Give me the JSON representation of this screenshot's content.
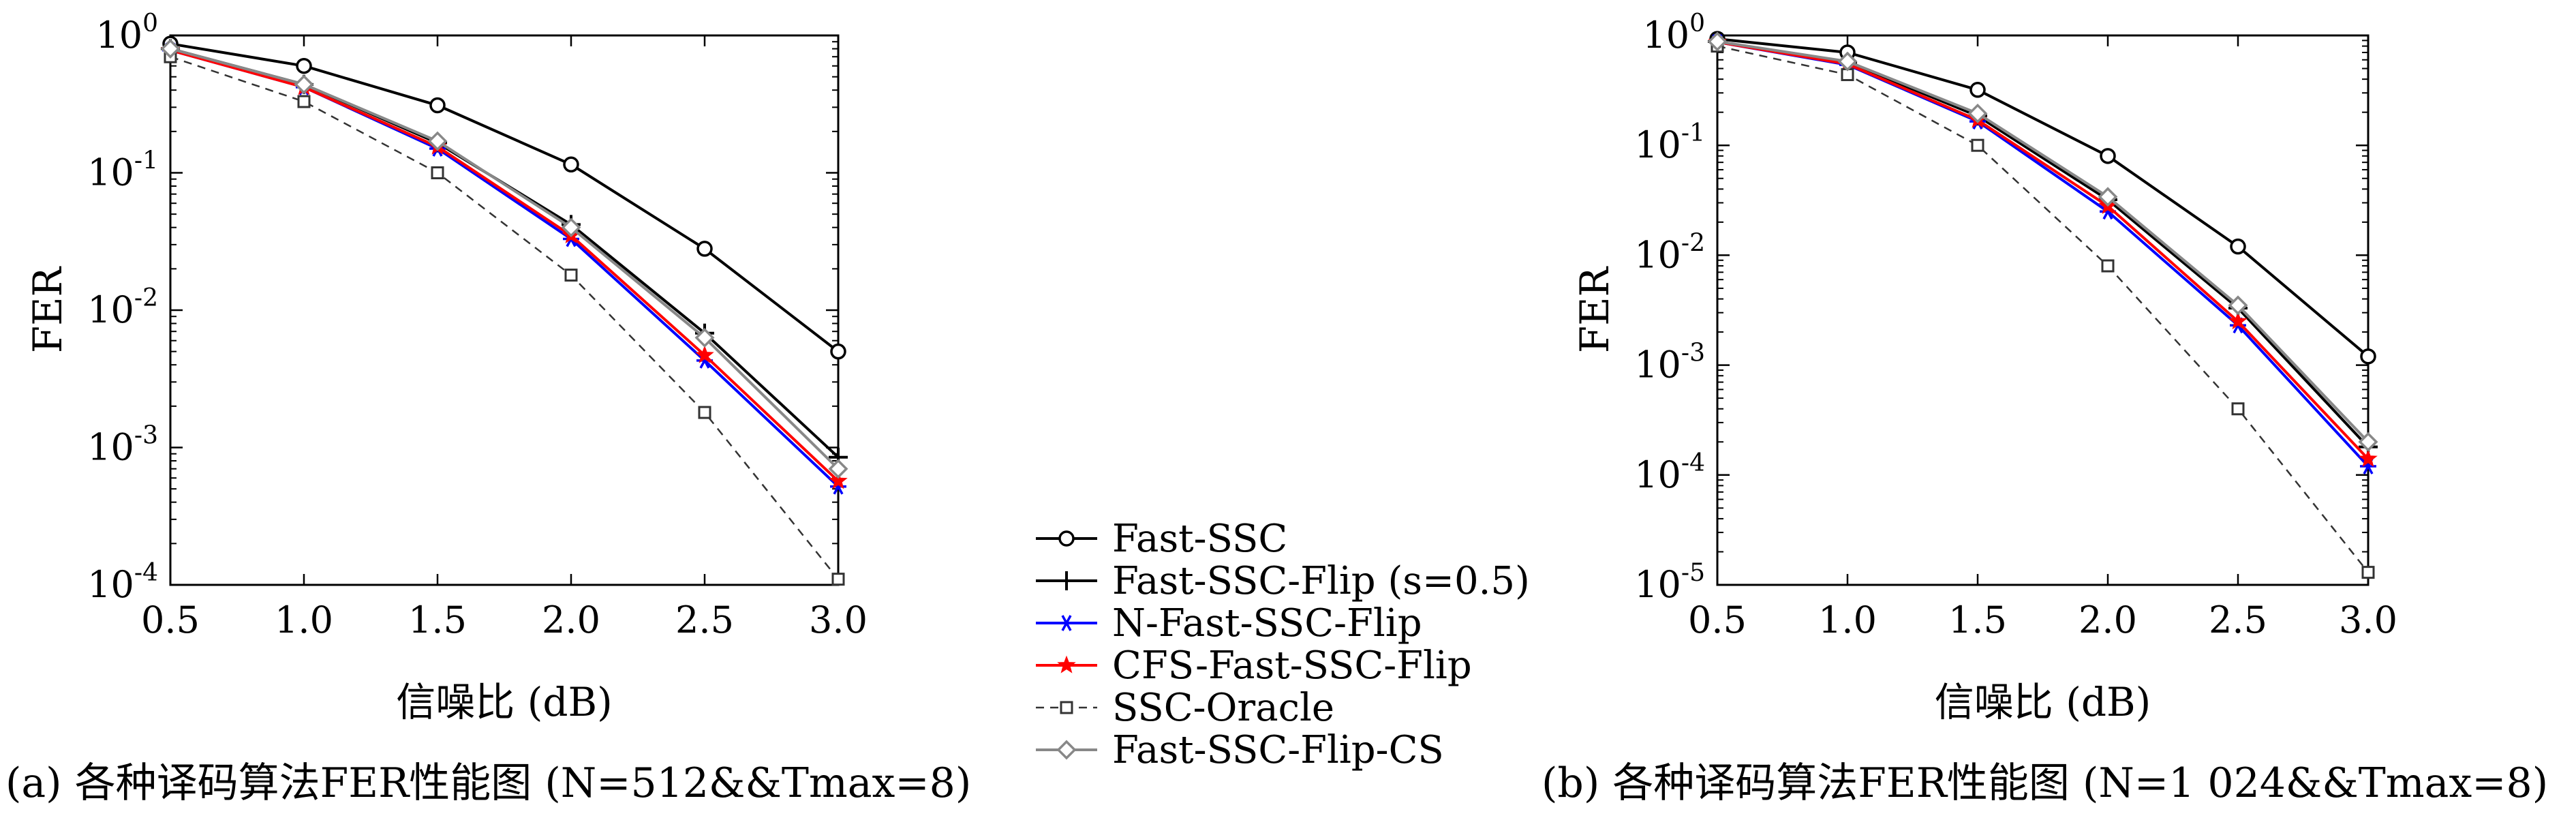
{
  "colors": {
    "Fast-SSC": "#000000",
    "Fast-SSC-Flip (s=0.5)": "#000000",
    "N-Fast-SSC-Flip": "#0000ff",
    "CFS-Fast-SSC-Flip": "#ff0000",
    "SSC-Oracle": "#333333",
    "Fast-SSC-Flip-CS": "#888888"
  },
  "legend": [
    {
      "label": "Fast-SSC",
      "marker": "circle"
    },
    {
      "label": "Fast-SSC-Flip (s=0.5)",
      "marker": "plus"
    },
    {
      "label": "N-Fast-SSC-Flip",
      "marker": "asterisk"
    },
    {
      "label": "CFS-Fast-SSC-Flip",
      "marker": "star"
    },
    {
      "label": "SSC-Oracle",
      "marker": "square",
      "dashed": true
    },
    {
      "label": "Fast-SSC-Flip-CS",
      "marker": "diamond"
    }
  ],
  "captions": {
    "a": "(a) 各种译码算法FER性能图 (N=512&&Tmax=8)",
    "b": "(b) 各种译码算法FER性能图 (N=1 024&&Tmax=8)"
  },
  "chart_data": [
    {
      "type": "line",
      "yscale": "log",
      "xlabel": "信噪比 (dB)",
      "ylabel": "FER",
      "x": [
        0.5,
        1.0,
        1.5,
        2.0,
        2.5,
        3.0
      ],
      "xlim": [
        0.5,
        3.0
      ],
      "ylim": [
        0.0001,
        1
      ],
      "xticks": [
        "0.5",
        "1.0",
        "1.5",
        "2.0",
        "2.5",
        "3.0"
      ],
      "yticks": [
        {
          "base": "10",
          "exp": "0",
          "value": 1
        },
        {
          "base": "10",
          "exp": "-1",
          "value": 0.1
        },
        {
          "base": "10",
          "exp": "-2",
          "value": 0.01
        },
        {
          "base": "10",
          "exp": "-3",
          "value": 0.001
        },
        {
          "base": "10",
          "exp": "-4",
          "value": 0.0001
        }
      ],
      "series": [
        {
          "name": "Fast-SSC",
          "values": [
            0.87,
            0.6,
            0.31,
            0.115,
            0.028,
            0.005
          ]
        },
        {
          "name": "Fast-SSC-Flip (s=0.5)",
          "values": [
            0.8,
            0.44,
            0.165,
            0.042,
            0.0068,
            0.00085
          ]
        },
        {
          "name": "N-Fast-SSC-Flip",
          "values": [
            0.78,
            0.42,
            0.15,
            0.033,
            0.0043,
            0.00052
          ]
        },
        {
          "name": "CFS-Fast-SSC-Flip",
          "values": [
            0.78,
            0.42,
            0.155,
            0.035,
            0.0047,
            0.00057
          ]
        },
        {
          "name": "SSC-Oracle",
          "values": [
            0.7,
            0.33,
            0.1,
            0.018,
            0.0018,
            0.00011
          ]
        },
        {
          "name": "Fast-SSC-Flip-CS",
          "values": [
            0.8,
            0.44,
            0.17,
            0.04,
            0.0063,
            0.0007
          ]
        }
      ]
    },
    {
      "type": "line",
      "yscale": "log",
      "xlabel": "信噪比 (dB)",
      "ylabel": "FER",
      "x": [
        0.5,
        1.0,
        1.5,
        2.0,
        2.5,
        3.0
      ],
      "xlim": [
        0.5,
        3.0
      ],
      "ylim": [
        1e-05,
        1
      ],
      "xticks": [
        "0.5",
        "1.0",
        "1.5",
        "2.0",
        "2.5",
        "3.0"
      ],
      "yticks": [
        {
          "base": "10",
          "exp": "0",
          "value": 1
        },
        {
          "base": "10",
          "exp": "-1",
          "value": 0.1
        },
        {
          "base": "10",
          "exp": "-2",
          "value": 0.01
        },
        {
          "base": "10",
          "exp": "-3",
          "value": 0.001
        },
        {
          "base": "10",
          "exp": "-4",
          "value": 0.0001
        },
        {
          "base": "10",
          "exp": "-5",
          "value": 1e-05
        }
      ],
      "series": [
        {
          "name": "Fast-SSC",
          "values": [
            0.93,
            0.7,
            0.32,
            0.08,
            0.012,
            0.0012
          ]
        },
        {
          "name": "Fast-SSC-Flip (s=0.5)",
          "values": [
            0.88,
            0.57,
            0.185,
            0.032,
            0.0033,
            0.00018
          ]
        },
        {
          "name": "N-Fast-SSC-Flip",
          "values": [
            0.87,
            0.54,
            0.165,
            0.025,
            0.0023,
            0.00012
          ]
        },
        {
          "name": "CFS-Fast-SSC-Flip",
          "values": [
            0.87,
            0.55,
            0.17,
            0.028,
            0.0025,
            0.00014
          ]
        },
        {
          "name": "SSC-Oracle",
          "values": [
            0.8,
            0.44,
            0.1,
            0.008,
            0.0004,
            1.3e-05
          ]
        },
        {
          "name": "Fast-SSC-Flip-CS",
          "values": [
            0.88,
            0.58,
            0.195,
            0.034,
            0.0035,
            0.0002
          ]
        }
      ]
    }
  ]
}
